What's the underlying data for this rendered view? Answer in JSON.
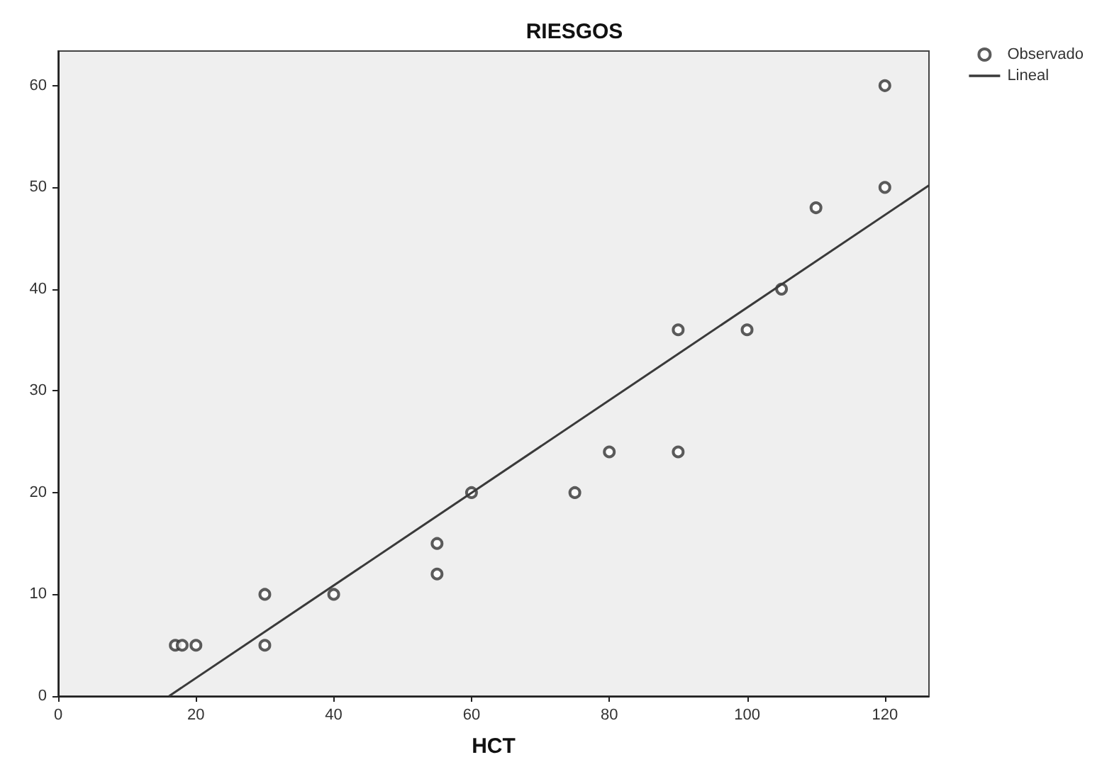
{
  "chart_data": {
    "type": "scatter",
    "title": "RIESGOS",
    "xlabel": "HCT",
    "xlim": [
      0,
      126.4
    ],
    "xticks": [
      0,
      20,
      40,
      60,
      80,
      100,
      120
    ],
    "ylim": [
      0,
      63.4
    ],
    "yticks": [
      0,
      10,
      20,
      30,
      40,
      50,
      60
    ],
    "grid": false,
    "legend": "top right",
    "series": [
      {
        "name": "Observado",
        "marker": "circle",
        "color": "#333333",
        "x": [
          17,
          18,
          20,
          30,
          30,
          40,
          55,
          55,
          60,
          75,
          80,
          90,
          90,
          100,
          105,
          110,
          120,
          120
        ],
        "values": [
          5,
          5,
          5,
          10,
          5,
          10,
          15,
          12,
          20,
          20,
          24,
          36,
          24,
          36,
          40,
          48,
          50,
          60
        ]
      },
      {
        "name": "Lineal",
        "type": "line",
        "color": "#3a3a3a",
        "line_style": "solid",
        "marker": "none",
        "x": [
          16.1,
          126.4
        ],
        "values": [
          0,
          50.2
        ]
      }
    ]
  }
}
